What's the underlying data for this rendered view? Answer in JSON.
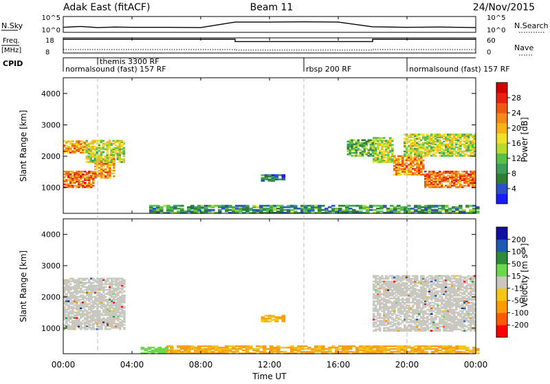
{
  "header": {
    "station": "Adak East (fitACF)",
    "beam": "Beam 11",
    "date": "24/Nov/2015"
  },
  "strip_labels": {
    "nsky": "N.Sky",
    "nsky_ticks": [
      "10^5",
      "10^0"
    ],
    "nsearch": "N.Search",
    "nsearch_ticks": [
      "10^5",
      "10^0"
    ],
    "freq_line1": "Freq.",
    "freq_line2": "[MHz]",
    "freq_ticks": [
      "18",
      "8"
    ],
    "nave": "Nave",
    "nave_ticks": [
      "60",
      "0"
    ],
    "cpid": "CPID"
  },
  "cpid_segments": [
    {
      "label": "normalsound (fast) 157 RF",
      "start_h": 0
    },
    {
      "label": "themis 3300 RF",
      "start_h": 2
    },
    {
      "label": "rbsp 200 RF",
      "start_h": 14
    },
    {
      "label": "normalsound (fast) 157 RF",
      "start_h": 20
    }
  ],
  "colorbars": {
    "power": {
      "label": "Power [dB]",
      "ticks": [
        "28",
        "24",
        "20",
        "16",
        "12",
        "8",
        "4"
      ],
      "colors": [
        "#1a1aff",
        "#2a4fc8",
        "#2e7d32",
        "#3c9c5a",
        "#56c04a",
        "#b9d830",
        "#f0e02a",
        "#f7b21a",
        "#f28a1a",
        "#ee5a14",
        "#e8210f",
        "#d40000"
      ]
    },
    "velocity": {
      "label": "Velocity [m s⁻¹]",
      "ticks": [
        "200",
        "100",
        "50",
        "15",
        "-15",
        "-50",
        "-100",
        "-200"
      ],
      "colors": [
        "#ff0000",
        "#ff5a00",
        "#ff9a00",
        "#f5c518",
        "#c8c8c0",
        "#6ad84a",
        "#2e8b3a",
        "#1e5ab4",
        "#1010a0"
      ]
    }
  },
  "x_axis": {
    "label": "Time UT",
    "ticks": [
      "00:00",
      "04:00",
      "08:00",
      "12:00",
      "16:00",
      "20:00",
      "00:00"
    ]
  },
  "chart_data": [
    {
      "type": "line",
      "title": "N.Sky / N.Search",
      "x_unit": "hours UT",
      "series": [
        {
          "name": "N.Sky",
          "x": [
            0,
            1,
            2,
            3,
            4,
            6,
            8,
            10,
            12,
            14,
            16,
            18,
            20,
            22,
            24
          ],
          "values": [
            1.5,
            1.8,
            1.4,
            1.6,
            1.5,
            1.5,
            1.4,
            3.3,
            3.3,
            3.4,
            3.3,
            1.7,
            1.5,
            1.6,
            1.4
          ]
        }
      ]
    },
    {
      "type": "line",
      "title": "Freq. [MHz] / Nave",
      "x_unit": "hours UT",
      "ylim": [
        8,
        18
      ],
      "series": [
        {
          "name": "Freq.",
          "x": [
            0,
            10,
            10,
            18,
            18,
            24
          ],
          "values": [
            17.5,
            17.5,
            15.8,
            15.8,
            17.5,
            17.5
          ]
        },
        {
          "name": "Nave",
          "x": [
            0,
            10,
            10,
            18,
            18,
            24
          ],
          "values": [
            12,
            12,
            10,
            10,
            12,
            12
          ]
        }
      ]
    },
    {
      "type": "heatmap",
      "title": "Power [dB]",
      "xlabel": "Time UT",
      "ylabel": "Slant Range [km]",
      "xlim": [
        0,
        24
      ],
      "ylim": [
        180,
        4500
      ],
      "y_ticks": [
        1000,
        2000,
        3000,
        4000
      ],
      "regions": [
        {
          "t0": 0.0,
          "t1": 1.8,
          "r0": 1000,
          "r1": 1500,
          "level": 24
        },
        {
          "t0": 1.8,
          "t1": 3.0,
          "r0": 1300,
          "r1": 1900,
          "level": 22
        },
        {
          "t0": 0.0,
          "t1": 1.3,
          "r0": 2100,
          "r1": 2500,
          "level": 22
        },
        {
          "t0": 1.3,
          "t1": 3.5,
          "r0": 1800,
          "r1": 2500,
          "level": 16
        },
        {
          "t0": 18.0,
          "t1": 19.2,
          "r0": 1800,
          "r1": 2600,
          "level": 16
        },
        {
          "t0": 19.2,
          "t1": 21.0,
          "r0": 1400,
          "r1": 2000,
          "level": 22
        },
        {
          "t0": 21.0,
          "t1": 24.0,
          "r0": 1000,
          "r1": 1500,
          "level": 24
        },
        {
          "t0": 19.8,
          "t1": 24.0,
          "r0": 2000,
          "r1": 2700,
          "level": 16
        },
        {
          "t0": 16.5,
          "t1": 18.0,
          "r0": 2000,
          "r1": 2500,
          "level": 12
        },
        {
          "t0": 11.5,
          "t1": 12.8,
          "r0": 1200,
          "r1": 1400,
          "level": 8
        },
        {
          "t0": 5.0,
          "t1": 24.0,
          "r0": 180,
          "r1": 450,
          "level": 10
        }
      ]
    },
    {
      "type": "heatmap",
      "title": "Velocity [m s⁻¹]",
      "xlabel": "Time UT",
      "ylabel": "Slant Range [km]",
      "xlim": [
        0,
        24
      ],
      "ylim": [
        180,
        4500
      ],
      "y_ticks": [
        1000,
        2000,
        3000,
        4000
      ],
      "regions": [
        {
          "t0": 0.0,
          "t1": 3.5,
          "r0": 950,
          "r1": 2600,
          "value": 0
        },
        {
          "t0": 18.0,
          "t1": 24.0,
          "r0": 900,
          "r1": 2700,
          "value": 0
        },
        {
          "t0": 11.5,
          "t1": 12.8,
          "r0": 1200,
          "r1": 1400,
          "value": -50
        },
        {
          "t0": 4.5,
          "t1": 6.0,
          "r0": 180,
          "r1": 400,
          "value": 50
        },
        {
          "t0": 6.0,
          "t1": 24.0,
          "r0": 180,
          "r1": 450,
          "value": -50
        }
      ]
    }
  ]
}
